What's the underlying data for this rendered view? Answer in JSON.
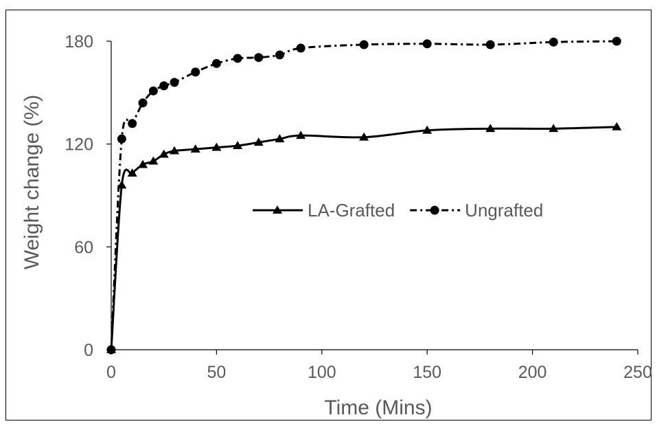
{
  "chart_data": {
    "type": "line",
    "title": "",
    "xlabel": "Time (Mins)",
    "ylabel": "Weight change (%)",
    "xlim": [
      0,
      250
    ],
    "ylim": [
      0,
      180
    ],
    "xticks": [
      0,
      50,
      100,
      150,
      200,
      250
    ],
    "yticks": [
      0,
      60,
      120,
      180
    ],
    "grid": false,
    "legend_position": "center-right",
    "series": [
      {
        "name": "LA-Grafted",
        "style": "solid",
        "marker": "triangle",
        "color": "#000000",
        "x": [
          0,
          5,
          10,
          15,
          20,
          25,
          30,
          40,
          50,
          60,
          70,
          80,
          90,
          120,
          150,
          180,
          210,
          240
        ],
        "y": [
          0,
          96,
          103,
          108,
          110,
          114,
          116,
          117,
          118,
          119,
          121,
          123,
          125,
          124,
          128,
          129,
          129,
          130
        ]
      },
      {
        "name": "Ungrafted",
        "style": "dash-dot",
        "marker": "circle",
        "color": "#000000",
        "x": [
          0,
          5,
          10,
          15,
          20,
          25,
          30,
          40,
          50,
          60,
          70,
          80,
          90,
          120,
          150,
          180,
          210,
          240
        ],
        "y": [
          0,
          123,
          132,
          144,
          151,
          154,
          156,
          162,
          167,
          170,
          170.5,
          172,
          176,
          178,
          178.5,
          178,
          179.5,
          180
        ]
      }
    ]
  }
}
